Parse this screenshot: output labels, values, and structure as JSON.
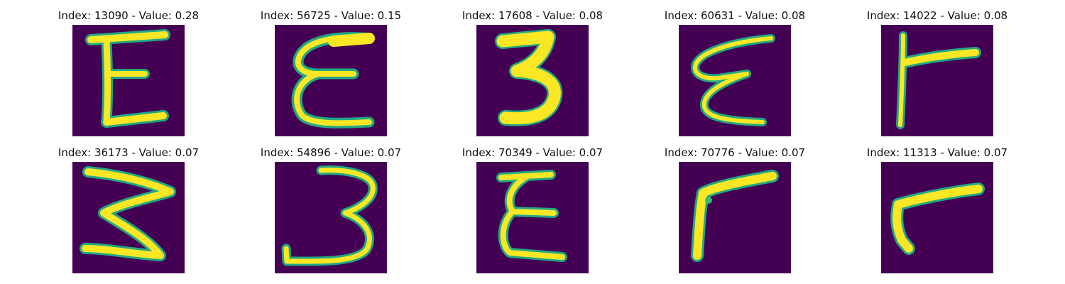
{
  "figure": {
    "background": "#ffffff",
    "cell_background": "#440154",
    "colormap": "viridis"
  },
  "chart_data": {
    "type": "image-grid",
    "panels": [
      {
        "index": 13090,
        "value": 0.28,
        "title": "Index: 13090 - Value: 0.28",
        "glyph": "E"
      },
      {
        "index": 56725,
        "value": 0.15,
        "title": "Index: 56725 - Value: 0.15",
        "glyph": "E"
      },
      {
        "index": 17608,
        "value": 0.08,
        "title": "Index: 17608 - Value: 0.08",
        "glyph": "3"
      },
      {
        "index": 60631,
        "value": 0.08,
        "title": "Index: 60631 - Value: 0.08",
        "glyph": "E"
      },
      {
        "index": 14022,
        "value": 0.08,
        "title": "Index: 14022 - Value: 0.08",
        "glyph": "r"
      },
      {
        "index": 36173,
        "value": 0.07,
        "title": "Index: 36173 - Value: 0.07",
        "glyph": "3"
      },
      {
        "index": 54896,
        "value": 0.07,
        "title": "Index: 54896 - Value: 0.07",
        "glyph": "3"
      },
      {
        "index": 70349,
        "value": 0.07,
        "title": "Index: 70349 - Value: 0.07",
        "glyph": "E"
      },
      {
        "index": 70776,
        "value": 0.07,
        "title": "Index: 70776 - Value: 0.07",
        "glyph": "r"
      },
      {
        "index": 11313,
        "value": 0.07,
        "title": "Index: 11313 - Value: 0.07",
        "glyph": "r"
      }
    ]
  }
}
